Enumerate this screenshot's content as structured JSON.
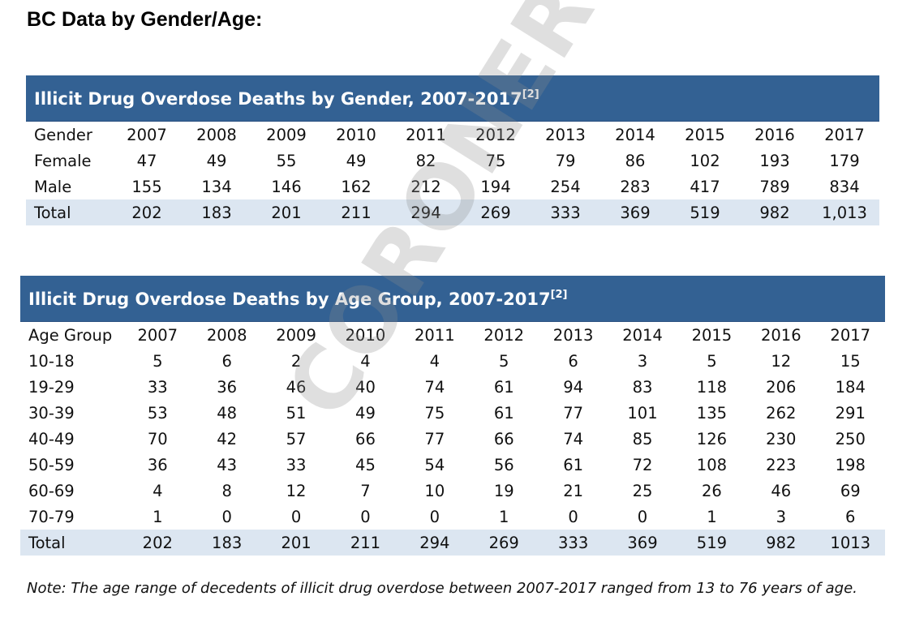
{
  "heading": "BC Data by Gender/Age:",
  "gender_table": {
    "caption": "Illicit Drug Overdose Deaths by Gender, 2007-2017",
    "caption_ref": "[2]",
    "header": [
      "Gender",
      "2007",
      "2008",
      "2009",
      "2010",
      "2011",
      "2012",
      "2013",
      "2014",
      "2015",
      "2016",
      "2017"
    ],
    "rows": [
      [
        "Female",
        "47",
        "49",
        "55",
        "49",
        "82",
        "75",
        "79",
        "86",
        "102",
        "193",
        "179"
      ],
      [
        "Male",
        "155",
        "134",
        "146",
        "162",
        "212",
        "194",
        "254",
        "283",
        "417",
        "789",
        "834"
      ],
      [
        "Total",
        "202",
        "183",
        "201",
        "211",
        "294",
        "269",
        "333",
        "369",
        "519",
        "982",
        "1,013"
      ]
    ]
  },
  "age_table": {
    "caption": "Illicit Drug Overdose Deaths by Age Group, 2007-2017",
    "caption_ref": "[2]",
    "header": [
      "Age Group",
      "2007",
      "2008",
      "2009",
      "2010",
      "2011",
      "2012",
      "2013",
      "2014",
      "2015",
      "2016",
      "2017"
    ],
    "rows": [
      [
        "10-18",
        "5",
        "6",
        "2",
        "4",
        "4",
        "5",
        "6",
        "3",
        "5",
        "12",
        "15"
      ],
      [
        "19-29",
        "33",
        "36",
        "46",
        "40",
        "74",
        "61",
        "94",
        "83",
        "118",
        "206",
        "184"
      ],
      [
        "30-39",
        "53",
        "48",
        "51",
        "49",
        "75",
        "61",
        "77",
        "101",
        "135",
        "262",
        "291"
      ],
      [
        "40-49",
        "70",
        "42",
        "57",
        "66",
        "77",
        "66",
        "74",
        "85",
        "126",
        "230",
        "250"
      ],
      [
        "50-59",
        "36",
        "43",
        "33",
        "45",
        "54",
        "56",
        "61",
        "72",
        "108",
        "223",
        "198"
      ],
      [
        "60-69",
        "4",
        "8",
        "12",
        "7",
        "10",
        "19",
        "21",
        "25",
        "26",
        "46",
        "69"
      ],
      [
        "70-79",
        "1",
        "0",
        "0",
        "0",
        "0",
        "1",
        "0",
        "0",
        "1",
        "3",
        "6"
      ],
      [
        "Total",
        "202",
        "183",
        "201",
        "211",
        "294",
        "269",
        "333",
        "369",
        "519",
        "982",
        "1013"
      ]
    ]
  },
  "note": "Note: The age range of decedents of illicit drug overdose between 2007-2017 ranged from 13 to 76 years of age.",
  "watermark": "CORONERS SERVICE",
  "colors": {
    "caption_bg": "#336193",
    "total_row_bg": "#dce6f1"
  }
}
